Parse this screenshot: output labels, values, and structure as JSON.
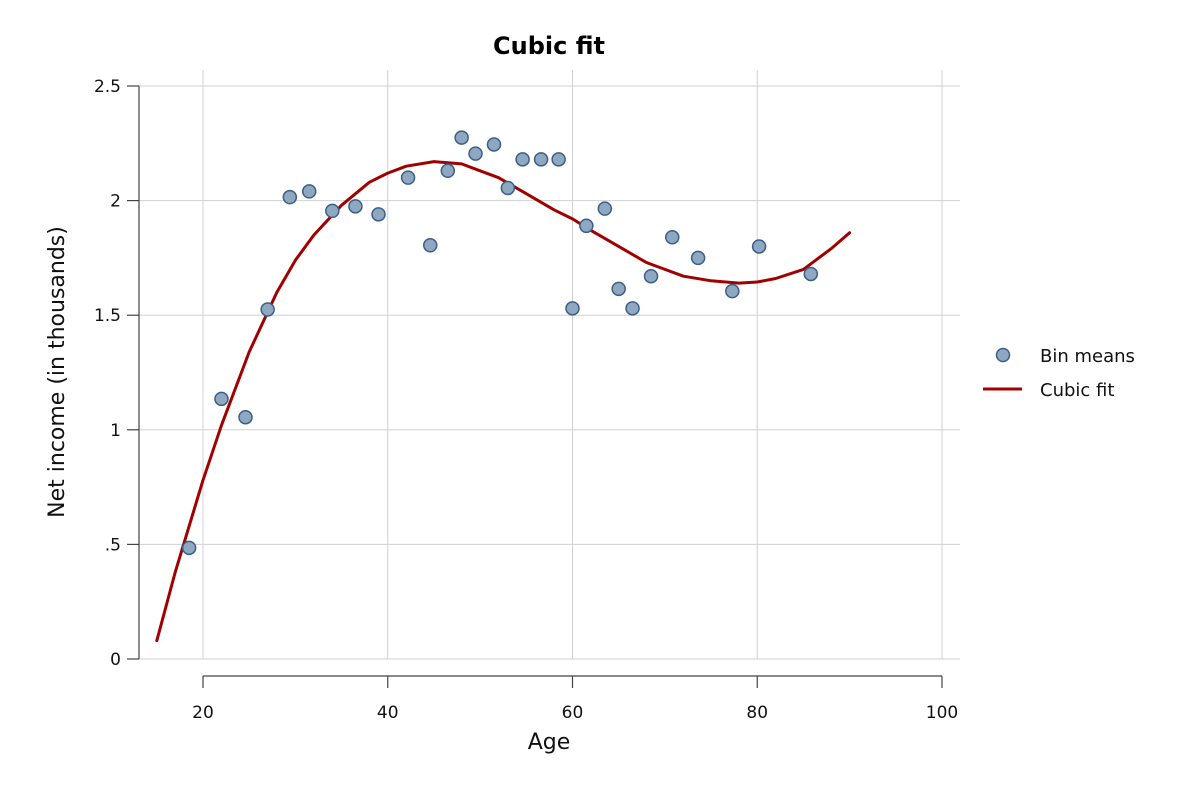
{
  "chart_data": {
    "type": "scatter",
    "title": "Cubic fit",
    "xlabel": "Age",
    "ylabel": "Net income (in thousands)",
    "xlim": [
      10,
      100
    ],
    "ylim": [
      0,
      2.5
    ],
    "x_ticks": [
      20,
      40,
      60,
      80,
      100
    ],
    "x_tick_labels": [
      "20",
      "40",
      "60",
      "80",
      "100"
    ],
    "y_ticks": [
      0,
      0.5,
      1,
      1.5,
      2,
      2.5
    ],
    "y_tick_labels": [
      "0",
      ".5",
      "1",
      "1.5",
      "2",
      "2.5"
    ],
    "grid": true,
    "legend_position": "right",
    "colors": {
      "points_fill": "#8fa8c2",
      "points_edge": "#3a5f86",
      "fit_line": "#a10000"
    },
    "series": [
      {
        "name": "Bin means",
        "kind": "scatter",
        "x": [
          18.5,
          22,
          24.6,
          27,
          29.4,
          31.5,
          34,
          36.5,
          39,
          42.2,
          44.6,
          46.5,
          48,
          49.5,
          51.5,
          53,
          54.6,
          56.6,
          58.5,
          60,
          61.5,
          63.5,
          65,
          66.5,
          68.5,
          70.8,
          73.6,
          77.3,
          80.2,
          85.8
        ],
        "y": [
          0.485,
          1.135,
          1.055,
          1.525,
          2.015,
          2.04,
          1.955,
          1.975,
          1.94,
          2.1,
          1.805,
          2.13,
          2.275,
          2.205,
          2.245,
          2.055,
          2.18,
          2.18,
          2.18,
          1.53,
          1.89,
          1.965,
          1.615,
          1.53,
          1.67,
          1.84,
          1.75,
          1.605,
          1.8,
          1.68
        ]
      },
      {
        "name": "Cubic fit",
        "kind": "line",
        "x": [
          15,
          17,
          20,
          22,
          25,
          28,
          30,
          32,
          35,
          38,
          40,
          42,
          45,
          48,
          50,
          52,
          55,
          58,
          60,
          62,
          65,
          68,
          70,
          72,
          75,
          78,
          80,
          82,
          85,
          88,
          90
        ],
        "y": [
          0.08,
          0.38,
          0.78,
          1.02,
          1.34,
          1.6,
          1.74,
          1.85,
          1.98,
          2.08,
          2.12,
          2.15,
          2.17,
          2.16,
          2.13,
          2.1,
          2.03,
          1.96,
          1.92,
          1.87,
          1.8,
          1.73,
          1.7,
          1.67,
          1.65,
          1.64,
          1.645,
          1.66,
          1.7,
          1.79,
          1.86
        ]
      }
    ]
  }
}
